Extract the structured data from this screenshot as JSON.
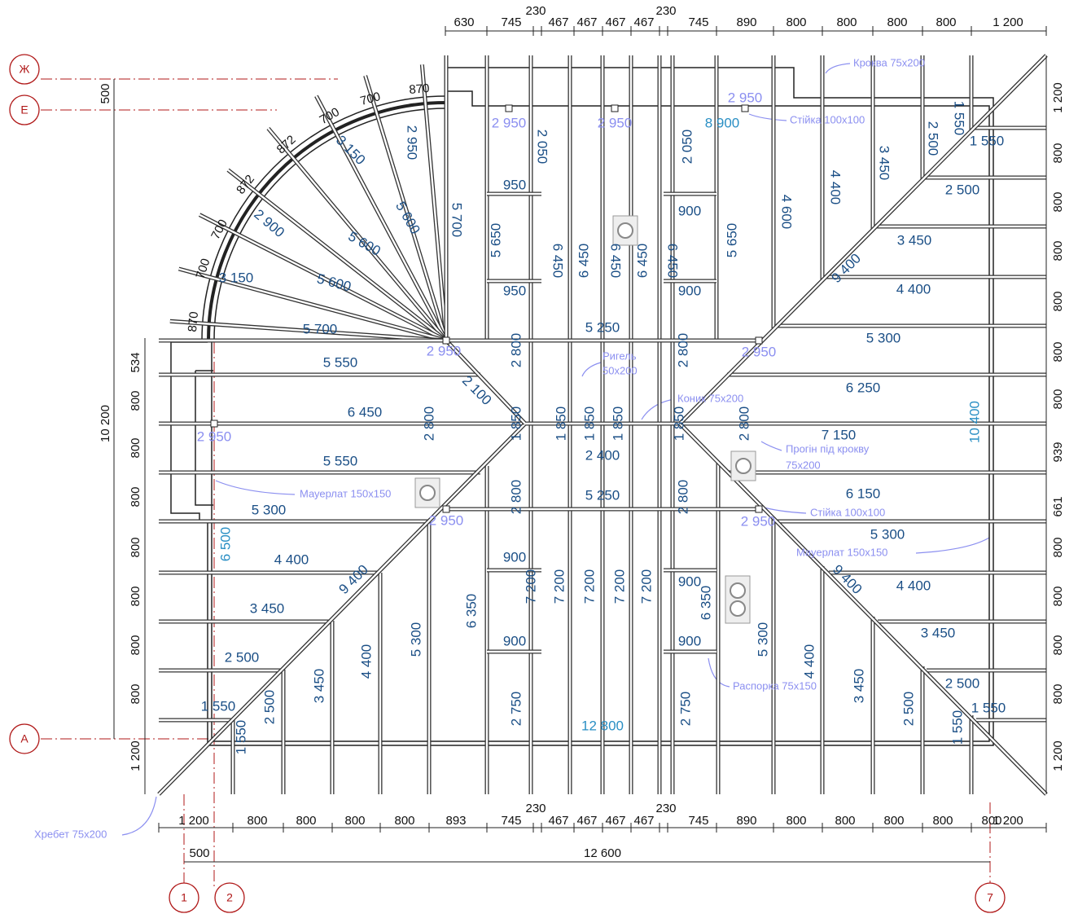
{
  "axes": {
    "rows": [
      "Ж",
      "Е",
      "А"
    ],
    "columns": [
      "1",
      "2",
      "7"
    ]
  },
  "dimensions": {
    "top": [
      "630",
      "745",
      "230",
      "467",
      "467",
      "467",
      "467",
      "230",
      "745",
      "890",
      "800",
      "800",
      "800",
      "800",
      "1 200"
    ],
    "bottom": [
      "1 200",
      "800",
      "800",
      "800",
      "800",
      "893",
      "745",
      "230",
      "467",
      "467",
      "467",
      "467",
      "230",
      "745",
      "890",
      "800",
      "800",
      "800",
      "800",
      "800",
      "1 200"
    ],
    "bottom_overall": [
      "500",
      "12 600"
    ],
    "left_overall": [
      "500",
      "10 200"
    ],
    "left": [
      "534",
      "800",
      "800",
      "800",
      "800",
      "800",
      "800",
      "800",
      "1 200"
    ],
    "right": [
      "1 200",
      "800",
      "800",
      "800",
      "800",
      "800",
      "800",
      "939",
      "661",
      "800",
      "800",
      "800",
      "800",
      "1 200"
    ]
  },
  "arc_segments": [
    "870",
    "700",
    "700",
    "872",
    "872",
    "700",
    "700",
    "870"
  ],
  "member_lengths": [
    "2 950",
    "3 150",
    "5 600",
    "2 900",
    "5 600",
    "3 150",
    "5 600",
    "5 700",
    "5 650",
    "2 050",
    "950",
    "950",
    "6 450",
    "6 450",
    "6 450",
    "6 450",
    "6 450",
    "2 050",
    "900",
    "900",
    "5 650",
    "4 600",
    "4 400",
    "3 450",
    "2 500",
    "1 550",
    "1 550",
    "2 500",
    "3 450",
    "4 400",
    "9 400",
    "5 300",
    "5 250",
    "5 700",
    "5 550",
    "2 800",
    "2 800",
    "2 100",
    "6 250",
    "6 450",
    "2 800",
    "1 850",
    "1 850",
    "1 850",
    "1 850",
    "1 850",
    "2 400",
    "2 800",
    "7 150",
    "5 550",
    "2 800",
    "2 800",
    "5 250",
    "6 150",
    "5 300",
    "5 300",
    "4 400",
    "4 400",
    "9 400",
    "9 400",
    "900",
    "900",
    "900",
    "900",
    "7 200",
    "7 200",
    "7 200",
    "7 200",
    "7 200",
    "6 350",
    "6 350",
    "5 300",
    "5 300",
    "3 450",
    "3 450",
    "4 400",
    "4 400",
    "3 450",
    "3 450",
    "2 500",
    "2 500",
    "2 500",
    "2 500",
    "1 550",
    "1 550",
    "1 550",
    "1 550",
    "2 750",
    "2 750"
  ],
  "totals": [
    "8 900",
    "12 800",
    "6 500",
    "10 400"
  ],
  "support_marks": [
    "2 950",
    "2 950",
    "2 950",
    "2 950",
    "2 950",
    "2 950",
    "2 950",
    "2 950"
  ],
  "annotations": [
    "Кроква 75x200",
    "Стійка 100x100",
    "Ригель",
    "50x200",
    "Коник 75x200",
    "Прогін під крокву",
    "75x200",
    "Мауерлат 150x150",
    "Стійка 100x100",
    "Мауерлат 150x150",
    "Распорка 75x150",
    "Хребет 75x200"
  ]
}
